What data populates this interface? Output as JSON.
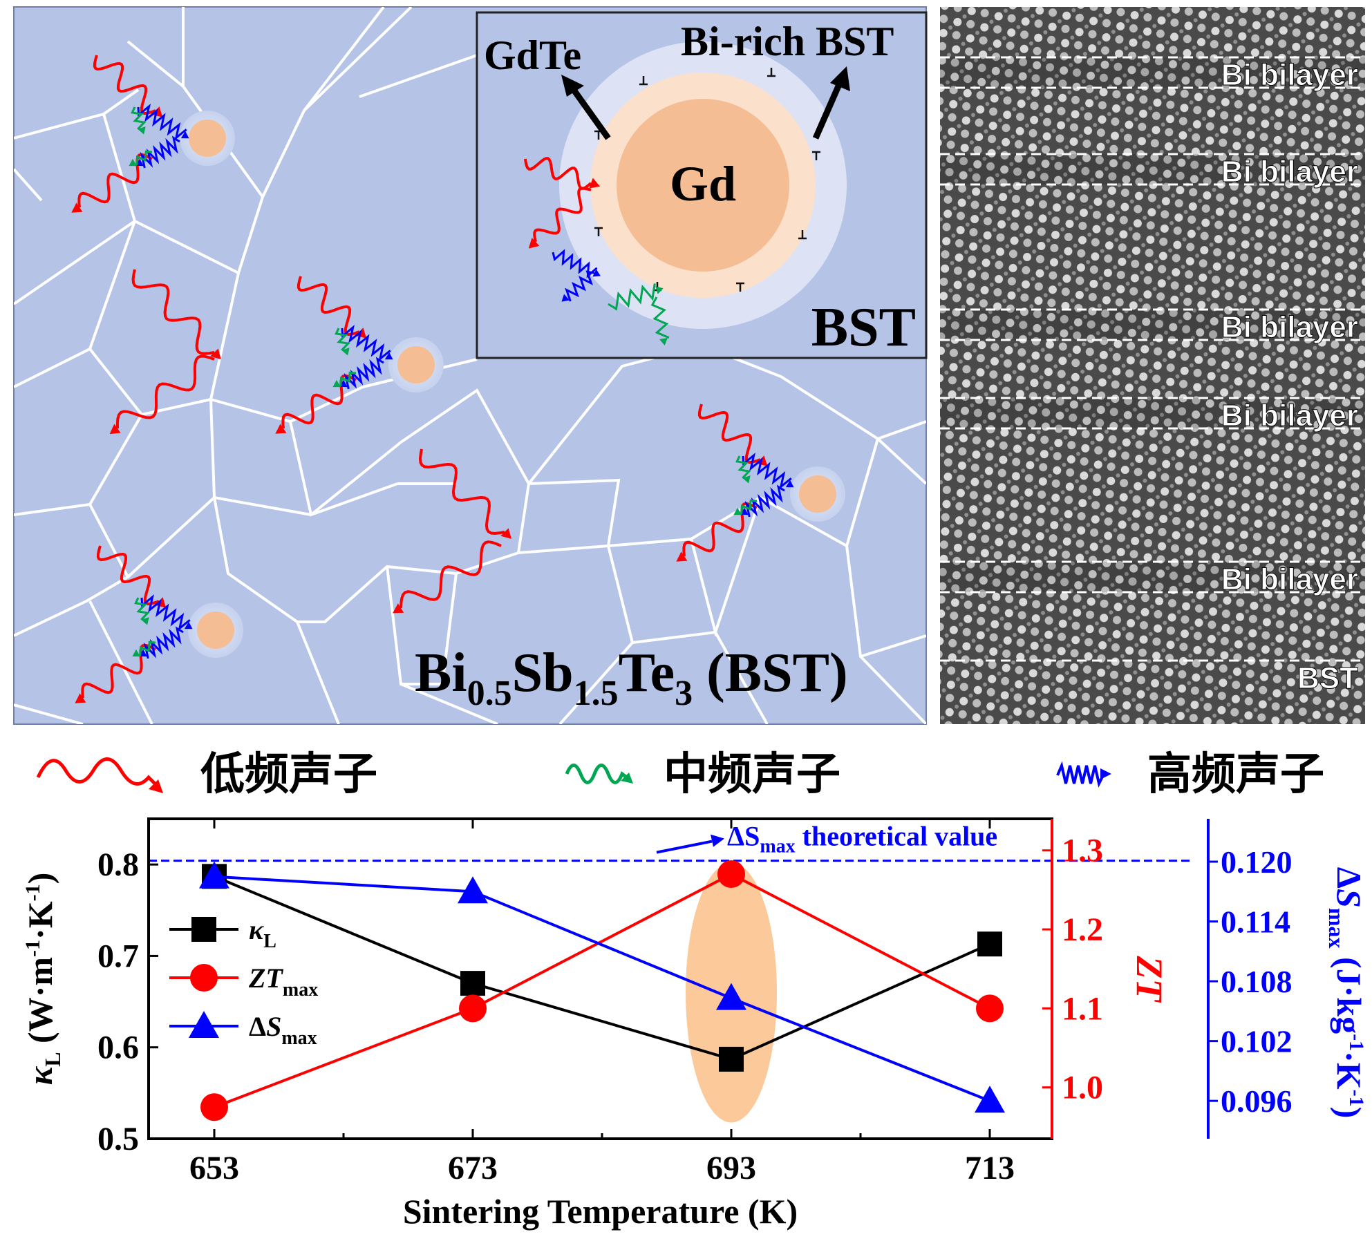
{
  "schematic": {
    "main_label": {
      "base1": "Bi",
      "sub1": "0.5",
      "base2": "Sb",
      "sub2": "1.5",
      "base3": "Te",
      "sub3": "3",
      "tail": " (BST)"
    },
    "inset": {
      "gdte": "GdTe",
      "bi_rich": "Bi-rich BST",
      "gd": "Gd",
      "bst": "BST"
    },
    "colors": {
      "matrix": "#b4c3e6",
      "grain_boundary": "#ffffff",
      "particle": "#f5bd94",
      "low": "#ff0000",
      "mid": "#00a651",
      "high": "#0000ff"
    }
  },
  "tem": {
    "labels": [
      "Bi bilayer",
      "Bi bilayer",
      "Bi bilayer",
      "Bi bilayer",
      "Bi bilayer",
      "BST"
    ]
  },
  "legend": {
    "low": {
      "label": "低频声子",
      "icon": "low-frequency-phonon-wave-icon"
    },
    "mid": {
      "label": "中频声子",
      "icon": "mid-frequency-phonon-wave-icon"
    },
    "high": {
      "label": "高频声子",
      "icon": "high-frequency-phonon-wave-icon"
    }
  },
  "chart_data": {
    "type": "line",
    "x": [
      653,
      673,
      693,
      713
    ],
    "xlabel": "Sintering Temperature (K)",
    "series": [
      {
        "name": "κL",
        "name_base": "κ",
        "name_sub": "L",
        "axis": "left",
        "marker": "square",
        "color": "#000000",
        "values": [
          0.787,
          0.67,
          0.587,
          0.713
        ]
      },
      {
        "name": "ZTmax",
        "name_base": "ZT",
        "name_sub": "max",
        "axis": "right",
        "marker": "circle",
        "color": "#ff0000",
        "values": [
          0.975,
          1.1,
          1.27,
          1.1
        ]
      },
      {
        "name": "ΔSmax",
        "name_base": "ΔS",
        "name_sub": "max",
        "axis": "far-right",
        "marker": "triangle",
        "color": "#0000ff",
        "values": [
          0.1185,
          0.117,
          0.1063,
          0.096
        ]
      }
    ],
    "axes": {
      "left": {
        "label_base": "κ",
        "label_sub": "L",
        "label_unit": " (W·m",
        "label_exp1": "-1",
        "label_mid": "·K",
        "label_exp2": "-1",
        "label_end": ")",
        "ylim": [
          0.5,
          0.85
        ],
        "ticks": [
          "0.5",
          "0.6",
          "0.7",
          "0.8"
        ]
      },
      "right": {
        "label": "ZT",
        "ylim": [
          0.935,
          1.34
        ],
        "ticks": [
          "1.0",
          "1.1",
          "1.2",
          "1.3"
        ]
      },
      "far_right": {
        "label_base": "ΔS",
        "label_sub": "max",
        "label_unit": " (J·kg",
        "label_exp1": "-1",
        "label_mid": "·K",
        "label_exp2": "-1",
        "label_end": ")",
        "ylim": [
          0.0922,
          0.1243
        ],
        "ticks": [
          "0.096",
          "0.102",
          "0.108",
          "0.114",
          "0.120"
        ]
      }
    },
    "reference_line": {
      "value": 0.1201,
      "axis": "far-right",
      "style": "dashed",
      "color": "#0000ff",
      "label_base": "ΔS",
      "label_sub": "max",
      "label_rest": " theoretical value"
    },
    "highlight": {
      "x": 693,
      "color": "#fbc99a"
    },
    "legend_position": "left-middle"
  }
}
